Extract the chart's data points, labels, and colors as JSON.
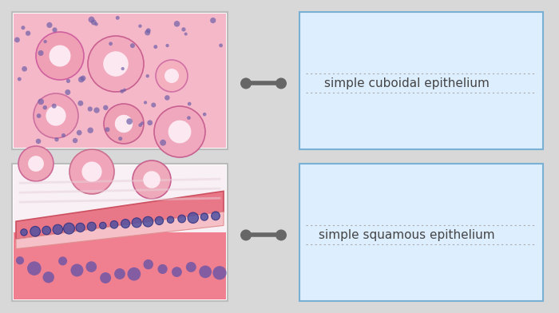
{
  "background_color": "#d8d8d8",
  "box_bg": "#ddeeff",
  "box_border": "#7ab0d4",
  "connector_color": "#666666",
  "label1": "simple cuboidal epithelium",
  "label2": "simple squamous epithelium",
  "label_fontsize": 11,
  "label_color": "#444444",
  "dotted_line_color": "#aaaaaa"
}
